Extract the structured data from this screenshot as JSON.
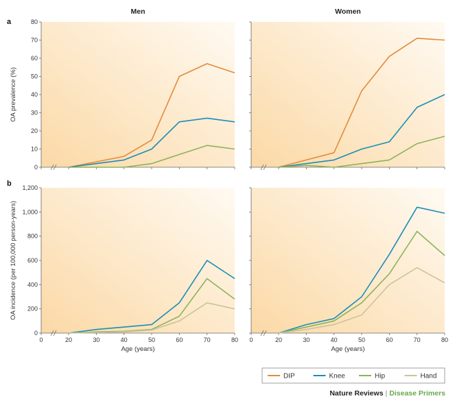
{
  "panels": {
    "a": {
      "label": "a"
    },
    "b": {
      "label": "b"
    }
  },
  "column_titles": [
    "Men",
    "Women"
  ],
  "colors": {
    "DIP": "#e38a3a",
    "Knee": "#1a8db5",
    "Hip": "#8ab35a",
    "Hand": "#c9c49a",
    "gradient_start": "#fbd9a6",
    "gradient_end": "#fffaf2"
  },
  "legend": {
    "entries": [
      "DIP",
      "Knee",
      "Hip",
      "Hand"
    ]
  },
  "credit": {
    "publisher": "Nature Reviews",
    "separator": "|",
    "series": "Disease Primers"
  },
  "chart_data": [
    {
      "type": "line",
      "panel": "a",
      "title": "Men",
      "xlabel": "",
      "ylabel": "OA prevalence (%)",
      "ylim": [
        0,
        80
      ],
      "yticks": [
        "0",
        "10",
        "20",
        "30",
        "40",
        "50",
        "60",
        "70",
        "80"
      ],
      "xticks": [
        "0",
        "20",
        "30",
        "40",
        "50",
        "60",
        "70",
        "80"
      ],
      "x": [
        20,
        30,
        40,
        50,
        60,
        70,
        80
      ],
      "series": [
        {
          "name": "DIP",
          "values": [
            0,
            3,
            6,
            15,
            50,
            57,
            52
          ]
        },
        {
          "name": "Knee",
          "values": [
            0,
            2,
            4,
            10,
            25,
            27,
            25
          ]
        },
        {
          "name": "Hip",
          "values": [
            0,
            0,
            0,
            2,
            7,
            12,
            10
          ]
        }
      ]
    },
    {
      "type": "line",
      "panel": "a",
      "title": "Women",
      "xlabel": "",
      "ylabel": "",
      "ylim": [
        0,
        80
      ],
      "xticks": [
        "0",
        "20",
        "30",
        "40",
        "50",
        "60",
        "70",
        "80"
      ],
      "x": [
        20,
        30,
        40,
        50,
        60,
        70,
        80
      ],
      "series": [
        {
          "name": "DIP",
          "values": [
            0,
            4,
            8,
            42,
            61,
            71,
            70
          ]
        },
        {
          "name": "Knee",
          "values": [
            0,
            2,
            4,
            10,
            14,
            33,
            40
          ]
        },
        {
          "name": "Hip",
          "values": [
            0,
            1,
            0,
            2,
            4,
            13,
            17
          ]
        }
      ]
    },
    {
      "type": "line",
      "panel": "b",
      "title": "",
      "xlabel": "Age (years)",
      "ylabel": "OA incidence  (per 100,000 person-years)",
      "ylim": [
        0,
        1200
      ],
      "yticks": [
        "0",
        "200",
        "400",
        "600",
        "800",
        "1,000",
        "1,200"
      ],
      "xticks": [
        "0",
        "20",
        "30",
        "40",
        "50",
        "60",
        "70",
        "80"
      ],
      "x": [
        20,
        30,
        40,
        50,
        60,
        70,
        80
      ],
      "series": [
        {
          "name": "Knee",
          "values": [
            0,
            30,
            50,
            70,
            250,
            600,
            450
          ]
        },
        {
          "name": "Hip",
          "values": [
            0,
            10,
            15,
            30,
            140,
            450,
            280
          ]
        },
        {
          "name": "Hand",
          "values": [
            0,
            5,
            10,
            25,
            100,
            250,
            200
          ]
        }
      ]
    },
    {
      "type": "line",
      "panel": "b",
      "title": "",
      "xlabel": "Age (years)",
      "ylabel": "",
      "ylim": [
        0,
        1200
      ],
      "xticks": [
        "0",
        "20",
        "30",
        "40",
        "50",
        "60",
        "70",
        "80"
      ],
      "x": [
        20,
        30,
        40,
        50,
        60,
        70,
        80
      ],
      "series": [
        {
          "name": "Knee",
          "values": [
            0,
            70,
            120,
            300,
            650,
            1040,
            990
          ]
        },
        {
          "name": "Hip",
          "values": [
            0,
            50,
            100,
            250,
            490,
            840,
            640
          ]
        },
        {
          "name": "Hand",
          "values": [
            0,
            30,
            70,
            150,
            400,
            540,
            415
          ]
        }
      ]
    }
  ]
}
